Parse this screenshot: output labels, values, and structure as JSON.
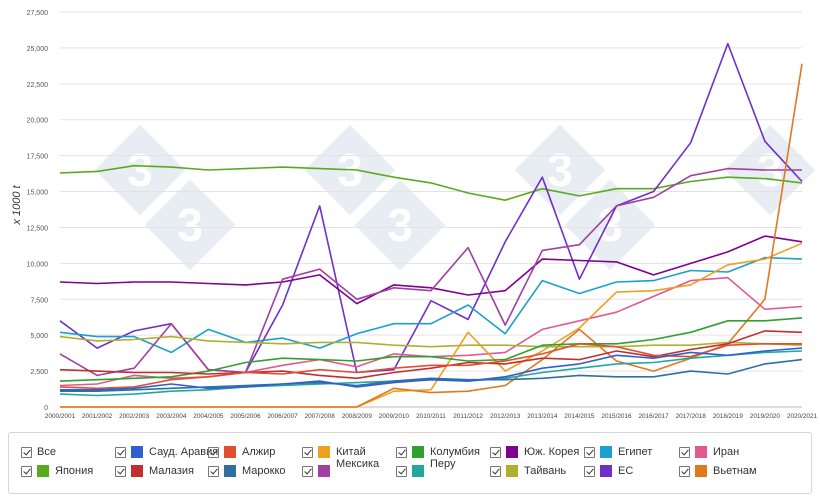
{
  "chart_data": {
    "type": "line",
    "ylabel": "x 1000 t",
    "ylim": [
      0,
      27500
    ],
    "yticks": [
      0,
      2500,
      5000,
      7500,
      10000,
      12500,
      15000,
      17500,
      20000,
      22500,
      25000,
      27500
    ],
    "ytick_labels": [
      "0",
      "2,500",
      "5,000",
      "7,500",
      "10,000",
      "12,500",
      "15,000",
      "17,500",
      "20,000",
      "22,500",
      "25,000",
      "27,500"
    ],
    "grid": true,
    "legend_position": "bottom",
    "categories": [
      "2000/2001",
      "2001/2002",
      "2002/2003",
      "2003/2004",
      "2004/2005",
      "2005/2006",
      "2006/2007",
      "2007/2008",
      "2008/2009",
      "2009/2010",
      "2010/2011",
      "2011/2012",
      "2012/2013",
      "2013/2014",
      "2014/2015",
      "2015/2016",
      "2016/2017",
      "2017/2018",
      "2018/2019",
      "2019/2020",
      "2020/2021"
    ],
    "series": [
      {
        "name": "Япония",
        "color": "#5aaa1e",
        "values": [
          16300,
          16400,
          16800,
          16700,
          16500,
          16600,
          16700,
          16600,
          16500,
          16000,
          15600,
          14900,
          14400,
          15200,
          14700,
          15200,
          15200,
          15700,
          16000,
          15900,
          15600
        ]
      },
      {
        "name": "ЕС",
        "color": "#7030c8",
        "values": [
          6000,
          4100,
          5300,
          5800,
          2600,
          2400,
          7100,
          14000,
          2400,
          2600,
          7400,
          6100,
          11500,
          16000,
          8900,
          14000,
          15000,
          18400,
          25300,
          18500,
          15700
        ]
      },
      {
        "name": "Южная Корея",
        "color": "#800090",
        "values": [
          8700,
          8600,
          8700,
          8700,
          8600,
          8500,
          8700,
          9200,
          7200,
          8500,
          8300,
          7800,
          8100,
          10300,
          10200,
          10100,
          9200,
          10000,
          10800,
          11900,
          11500
        ]
      },
      {
        "name": "Египет",
        "color": "#1ba0d0",
        "values": [
          5200,
          4900,
          4900,
          3800,
          5400,
          4500,
          4800,
          4100,
          5100,
          5800,
          5800,
          7100,
          5100,
          8800,
          7900,
          8700,
          8800,
          9500,
          9400,
          10400,
          10300
        ]
      },
      {
        "name": "Иран",
        "color": "#e05a90",
        "values": [
          1500,
          1600,
          2200,
          2000,
          2100,
          2400,
          2900,
          3300,
          2800,
          3700,
          3500,
          3600,
          3800,
          5400,
          6000,
          6600,
          7700,
          8800,
          9000,
          6800,
          7000
        ]
      },
      {
        "name": "Китай",
        "color": "#f0a020",
        "values": [
          0,
          0,
          0,
          0,
          0,
          0,
          0,
          0,
          0,
          1100,
          1200,
          5200,
          2500,
          3900,
          5500,
          8000,
          8100,
          8500,
          9900,
          10300,
          11400
        ]
      },
      {
        "name": "Мексика",
        "color": "#a040a0",
        "values": [
          3700,
          2200,
          2700,
          5800,
          2600,
          2400,
          8900,
          9600,
          7500,
          8300,
          8100,
          11100,
          5700,
          10900,
          11300,
          14000,
          14600,
          16100,
          16600,
          16500,
          16500
        ]
      },
      {
        "name": "Вьетнам",
        "color": "#e07820",
        "values": [
          0,
          0,
          0,
          0,
          0,
          0,
          0,
          0,
          0,
          1300,
          1000,
          1100,
          1500,
          3300,
          5400,
          3200,
          2500,
          3400,
          4400,
          7500,
          23900
        ]
      },
      {
        "name": "Тайвань",
        "color": "#b0b030",
        "values": [
          4900,
          4600,
          4700,
          4900,
          4600,
          4500,
          4400,
          4500,
          4500,
          4300,
          4200,
          4300,
          4300,
          4200,
          4200,
          4200,
          4300,
          4300,
          4500,
          4400,
          4300
        ]
      },
      {
        "name": "Колумбия",
        "color": "#30a030",
        "values": [
          1800,
          1900,
          2000,
          2100,
          2500,
          3100,
          3400,
          3300,
          3200,
          3500,
          3500,
          3200,
          3300,
          4300,
          4400,
          4400,
          4700,
          5200,
          6000,
          6000,
          6200
        ]
      },
      {
        "name": "Малайзия",
        "color": "#c03030",
        "values": [
          2600,
          2500,
          2400,
          2400,
          2300,
          2400,
          2500,
          2200,
          2000,
          2400,
          2700,
          3100,
          3000,
          3400,
          3300,
          3900,
          3500,
          4000,
          4400,
          5300,
          5200
        ]
      },
      {
        "name": "Алжир",
        "color": "#e05030",
        "values": [
          1400,
          1300,
          1400,
          1900,
          2100,
          2400,
          2300,
          2600,
          2400,
          2700,
          2900,
          2900,
          3200,
          3700,
          4400,
          4200,
          3600,
          3500,
          4300,
          4400,
          4400
        ]
      },
      {
        "name": "Перу",
        "color": "#20a8a0",
        "values": [
          900,
          800,
          900,
          1100,
          1200,
          1400,
          1500,
          1600,
          1700,
          1800,
          1900,
          1800,
          2000,
          2400,
          2700,
          3000,
          3100,
          3400,
          3600,
          3800,
          3900
        ]
      },
      {
        "name": "Марокко",
        "color": "#3070a0",
        "values": [
          1100,
          1100,
          1200,
          1300,
          1400,
          1500,
          1600,
          1700,
          1500,
          1800,
          2000,
          1900,
          1900,
          2000,
          2200,
          2100,
          2100,
          2500,
          2300,
          3000,
          3300
        ]
      },
      {
        "name": "Саудовская Аравия",
        "color": "#3060d0",
        "values": [
          1200,
          1200,
          1300,
          1600,
          1300,
          1400,
          1600,
          1800,
          1400,
          1700,
          1900,
          1800,
          2100,
          2700,
          3000,
          3600,
          3400,
          3800,
          3600,
          3900,
          4100
        ]
      }
    ]
  },
  "legend": [
    {
      "label": "Все",
      "color": "",
      "row": 0,
      "col": 0
    },
    {
      "label": "Япония",
      "color": "#5aaa1e",
      "row": 1,
      "col": 0
    },
    {
      "label": "Сауд. Аравия",
      "color": "#3060d0",
      "row": 0,
      "col": 1
    },
    {
      "label": "Малазия",
      "color": "#c03030",
      "row": 1,
      "col": 1
    },
    {
      "label": "Алжир",
      "color": "#e05030",
      "row": 0,
      "col": 2
    },
    {
      "label": "Марокко",
      "color": "#3070a0",
      "row": 1,
      "col": 2
    },
    {
      "label": "Китай\nМексика",
      "color": "#f0a020",
      "row": 0,
      "col": 3
    },
    {
      "label": "",
      "color": "#a040a0",
      "row": 1,
      "col": 3
    },
    {
      "label": "Колумбия\nПеру",
      "color": "#30a030",
      "row": 0,
      "col": 4
    },
    {
      "label": "",
      "color": "#20a8a0",
      "row": 1,
      "col": 4
    },
    {
      "label": "Юж. Корея",
      "color": "#800090",
      "row": 0,
      "col": 5
    },
    {
      "label": "Тайвань",
      "color": "#b0b030",
      "row": 1,
      "col": 5
    },
    {
      "label": "Египет",
      "color": "#1ba0d0",
      "row": 0,
      "col": 6
    },
    {
      "label": "ЕС",
      "color": "#7030c8",
      "row": 1,
      "col": 6
    },
    {
      "label": "Иран",
      "color": "#e05a90",
      "row": 0,
      "col": 7
    },
    {
      "label": "Вьетнам",
      "color": "#e07820",
      "row": 1,
      "col": 7
    }
  ]
}
